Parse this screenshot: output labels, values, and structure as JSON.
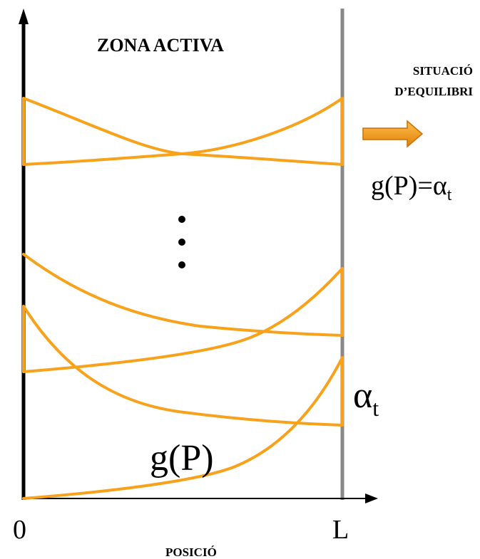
{
  "title": "ZONA ACTIVA",
  "side_note": {
    "line1": "SITUACIÓ",
    "line2": "D’EQUILIBRI"
  },
  "equilibrium": {
    "lhs": "g(P)=",
    "alpha": "α",
    "sub": "t"
  },
  "alpha_label": {
    "alpha": "α",
    "sub": "t"
  },
  "g_label": "g(P)",
  "x_axis": {
    "origin": "0",
    "end": "L",
    "label": "POSICIÓ"
  },
  "ellipsis": "⋮",
  "colors": {
    "curve": "#F7A21A",
    "wall": "#888888",
    "axis": "#000000"
  }
}
